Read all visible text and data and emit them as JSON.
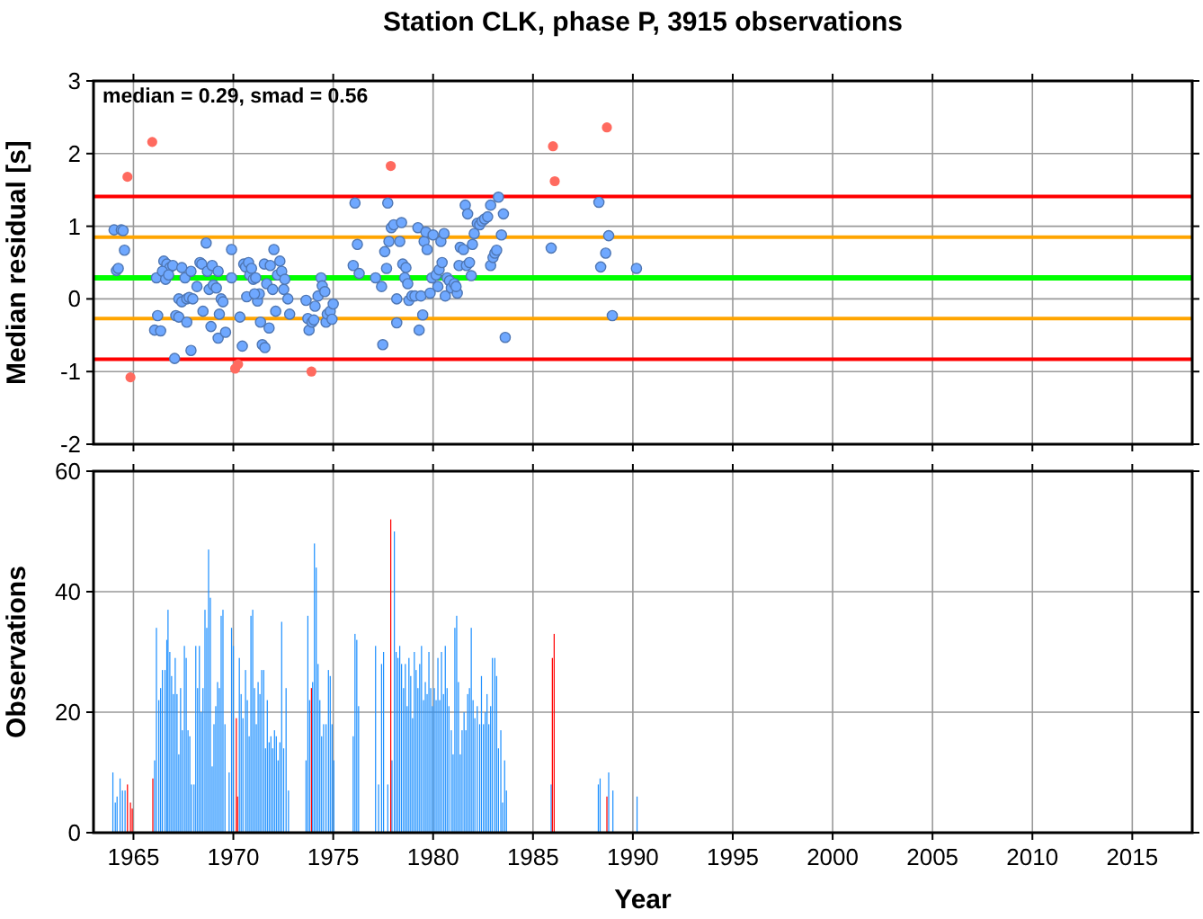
{
  "chart_data": [
    {
      "type": "scatter",
      "title": "Station CLK, phase P, 3915 observations",
      "ylabel": "Median residual [s]",
      "xlim": [
        1963,
        2018
      ],
      "xticks": [
        1965,
        1970,
        1975,
        1980,
        1985,
        1990,
        1995,
        2000,
        2005,
        2010,
        2015
      ],
      "ylim": [
        -2,
        3
      ],
      "yticks": [
        -2,
        -1,
        0,
        1,
        2,
        3
      ],
      "tick_labels": "y",
      "grid": true,
      "marker": "circle",
      "annotations": [
        "median = 0.29, smad = 0.56"
      ],
      "ref_lines": [
        {
          "axis": "y",
          "value": 1.41,
          "color": "#ff0000"
        },
        {
          "axis": "y",
          "value": 0.85,
          "color": "#ffa500"
        },
        {
          "axis": "y",
          "value": 0.29,
          "color": "#00ff00"
        },
        {
          "axis": "y",
          "value": -0.27,
          "color": "#ffa500"
        },
        {
          "axis": "y",
          "value": -0.83,
          "color": "#ff0000"
        }
      ],
      "series": [
        {
          "color": "#6fa8ff",
          "x": [
            1964.03,
            1964.39,
            1964.48,
            1964.55,
            1964.15,
            1964.24,
            1966.15,
            1966.21,
            1966.06,
            1966.36,
            1967.06,
            1966.52,
            1966.67,
            1966.82,
            1966.45,
            1966.61,
            1966.76,
            1966.97,
            1967.42,
            1967.58,
            1967.27,
            1967.42,
            1967.67,
            1967.79,
            1967.88,
            1967.97,
            1968.18,
            1968.33,
            1968.42,
            1968.64,
            1968.79,
            1968.7,
            1968.94,
            1969.0,
            1969.15,
            1969.24,
            1969.39,
            1969.48,
            1968.48,
            1968.88,
            1969.24,
            1969.61,
            1967.88,
            1967.12,
            1967.27,
            1967.67,
            1969.3,
            1969.91,
            1970.33,
            1970.45,
            1970.52,
            1970.61,
            1970.76,
            1970.82,
            1970.91,
            1971.0,
            1971.12,
            1971.21,
            1971.3,
            1971.36,
            1971.45,
            1971.58,
            1971.55,
            1971.67,
            1971.79,
            1971.85,
            1971.97,
            1972.03,
            1972.12,
            1972.21,
            1972.33,
            1972.42,
            1972.52,
            1972.58,
            1972.73,
            1972.82,
            1973.64,
            1973.73,
            1973.79,
            1973.94,
            1974.03,
            1974.09,
            1974.24,
            1974.39,
            1974.45,
            1974.58,
            1974.64,
            1974.7,
            1974.85,
            1974.94,
            1975.0,
            1970.67,
            1971.06,
            1969.91,
            1976.09,
            1976.21,
            1976.0,
            1976.3,
            1977.12,
            1977.42,
            1977.48,
            1977.58,
            1977.67,
            1977.73,
            1977.79,
            1977.91,
            1978.03,
            1978.18,
            1978.18,
            1978.33,
            1978.42,
            1978.48,
            1978.64,
            1978.58,
            1978.73,
            1978.79,
            1978.94,
            1979.09,
            1979.24,
            1979.3,
            1979.39,
            1979.48,
            1979.55,
            1979.64,
            1979.7,
            1979.85,
            1979.94,
            1980.0,
            1980.15,
            1980.24,
            1980.3,
            1980.39,
            1980.45,
            1980.55,
            1980.61,
            1980.7,
            1980.82,
            1980.91,
            1981.06,
            1981.21,
            1981.15,
            1981.3,
            1981.36,
            1981.52,
            1981.61,
            1981.73,
            1981.67,
            1981.82,
            1981.91,
            1981.97,
            1982.06,
            1982.21,
            1982.33,
            1982.45,
            1982.58,
            1982.73,
            1982.88,
            1982.88,
            1983.0,
            1983.09,
            1983.18,
            1983.27,
            1983.42,
            1983.52,
            1983.61,
            1985.91,
            1988.3,
            1988.79,
            1988.64,
            1988.39,
            1988.97,
            1990.18
          ],
          "values": [
            0.95,
            0.95,
            0.94,
            0.67,
            0.39,
            0.42,
            0.29,
            -0.23,
            -0.43,
            -0.44,
            -0.82,
            0.52,
            0.48,
            0.43,
            0.38,
            0.27,
            0.33,
            0.46,
            0.43,
            0.29,
            0.0,
            -0.04,
            0.0,
            0.02,
            0.38,
            0.0,
            0.17,
            0.5,
            0.48,
            0.77,
            0.13,
            0.38,
            0.46,
            0.19,
            0.15,
            0.38,
            0.0,
            -0.04,
            -0.17,
            -0.38,
            -0.54,
            -0.46,
            -0.71,
            -0.23,
            -0.25,
            -0.32,
            -0.21,
            0.68,
            -0.25,
            -0.65,
            0.48,
            0.44,
            0.5,
            0.33,
            0.42,
            0.27,
            0.29,
            -0.03,
            0.07,
            -0.32,
            -0.63,
            -0.67,
            0.48,
            0.21,
            -0.4,
            0.46,
            0.13,
            0.68,
            -0.17,
            0.33,
            0.52,
            0.38,
            0.13,
            0.27,
            0.0,
            -0.21,
            -0.02,
            -0.27,
            -0.43,
            -0.32,
            -0.29,
            -0.1,
            0.04,
            0.29,
            0.18,
            0.1,
            -0.32,
            -0.21,
            -0.17,
            -0.28,
            -0.07,
            0.03,
            0.07,
            0.29,
            1.32,
            0.75,
            0.46,
            0.35,
            0.29,
            0.17,
            -0.63,
            0.65,
            0.42,
            1.32,
            0.79,
            0.98,
            1.02,
            0.0,
            -0.33,
            0.79,
            1.05,
            0.48,
            0.43,
            0.29,
            0.21,
            -0.02,
            0.04,
            0.04,
            0.98,
            -0.43,
            0.04,
            -0.22,
            0.79,
            0.92,
            0.68,
            0.08,
            0.29,
            0.88,
            0.33,
            0.17,
            0.4,
            0.79,
            0.5,
            0.9,
            0.04,
            0.29,
            0.25,
            0.15,
            0.21,
            0.08,
            0.17,
            0.46,
            0.71,
            0.68,
            1.29,
            1.17,
            0.46,
            0.5,
            0.32,
            0.75,
            0.9,
            1.04,
            1.02,
            1.07,
            1.1,
            1.13,
            1.29,
            0.46,
            0.57,
            0.63,
            0.67,
            1.4,
            0.88,
            1.17,
            -0.53,
            0.7,
            1.33,
            0.87,
            0.63,
            0.44,
            -0.23,
            0.42
          ]
        },
        {
          "color": "#ff6a5f",
          "x": [
            1964.7,
            1965.94,
            1964.85,
            1970.09,
            1970.24,
            1973.91,
            1977.88,
            1986.0,
            1986.09,
            1988.7
          ],
          "values": [
            1.68,
            2.16,
            -1.08,
            -0.96,
            -0.9,
            -1.0,
            1.83,
            2.1,
            1.62,
            2.36
          ]
        }
      ]
    },
    {
      "type": "bar",
      "xlabel": "Year",
      "ylabel": "Observations",
      "xlim": [
        1963,
        2018
      ],
      "xticks": [
        1965,
        1970,
        1975,
        1980,
        1985,
        1990,
        1995,
        2000,
        2005,
        2010,
        2015
      ],
      "ylim": [
        0,
        60
      ],
      "yticks": [
        0,
        20,
        40,
        60
      ],
      "grid": true,
      "series": [
        {
          "color": "#1e90ff",
          "x": [
            1963.97,
            1964.09,
            1964.18,
            1964.33,
            1964.45,
            1964.58,
            1966.06,
            1966.15,
            1966.27,
            1966.36,
            1966.45,
            1966.58,
            1966.67,
            1966.73,
            1966.82,
            1966.91,
            1967.0,
            1967.09,
            1967.18,
            1967.27,
            1967.36,
            1967.45,
            1967.55,
            1967.64,
            1967.73,
            1967.82,
            1967.91,
            1968.03,
            1968.12,
            1968.21,
            1968.3,
            1968.39,
            1968.48,
            1968.58,
            1968.67,
            1968.76,
            1968.85,
            1968.94,
            1969.03,
            1969.12,
            1969.21,
            1969.3,
            1969.39,
            1969.48,
            1969.58,
            1969.79,
            1969.91,
            1970.0,
            1970.3,
            1970.39,
            1970.48,
            1970.61,
            1970.7,
            1970.79,
            1970.88,
            1970.97,
            1971.06,
            1971.15,
            1971.24,
            1971.33,
            1971.42,
            1971.52,
            1971.61,
            1971.7,
            1971.79,
            1971.88,
            1971.97,
            1972.06,
            1972.15,
            1972.24,
            1972.33,
            1972.42,
            1972.52,
            1972.64,
            1972.76,
            1973.64,
            1973.73,
            1973.82,
            1973.97,
            1974.06,
            1974.15,
            1974.24,
            1974.33,
            1974.42,
            1974.52,
            1974.64,
            1974.76,
            1974.85,
            1974.94,
            1975.03,
            1976.0,
            1976.09,
            1976.18,
            1976.27,
            1977.12,
            1977.27,
            1977.42,
            1977.52,
            1977.73,
            1977.94,
            1978.06,
            1978.15,
            1978.24,
            1978.33,
            1978.42,
            1978.52,
            1978.61,
            1978.7,
            1978.79,
            1978.88,
            1978.97,
            1979.06,
            1979.15,
            1979.24,
            1979.33,
            1979.42,
            1979.52,
            1979.61,
            1979.7,
            1979.79,
            1979.88,
            1979.97,
            1980.06,
            1980.15,
            1980.24,
            1980.33,
            1980.42,
            1980.52,
            1980.61,
            1980.7,
            1980.79,
            1980.91,
            1981.0,
            1981.09,
            1981.18,
            1981.27,
            1981.36,
            1981.45,
            1981.55,
            1981.64,
            1981.73,
            1981.82,
            1981.91,
            1982.0,
            1982.09,
            1982.21,
            1982.33,
            1982.42,
            1982.52,
            1982.61,
            1982.7,
            1982.79,
            1982.88,
            1982.97,
            1983.09,
            1983.18,
            1983.27,
            1983.39,
            1983.48,
            1983.58,
            1983.67,
            1985.91,
            1988.27,
            1988.36,
            1988.79,
            1989.0,
            1990.21
          ],
          "values": [
            10,
            5,
            6,
            9,
            7,
            7,
            12,
            34,
            22,
            24,
            27,
            27,
            32,
            37,
            30,
            26,
            23,
            29,
            23,
            13,
            24,
            17,
            31,
            29,
            17,
            16,
            8,
            8,
            31,
            24,
            31,
            20,
            24,
            37,
            34,
            47,
            39,
            11,
            18,
            21,
            25,
            24,
            36,
            37,
            18,
            10,
            34,
            31,
            29,
            23,
            19,
            27,
            22,
            16,
            36,
            37,
            24,
            18,
            25,
            23,
            27,
            27,
            14,
            22,
            15,
            16,
            14,
            17,
            16,
            12,
            15,
            35,
            14,
            24,
            7,
            12,
            36,
            22,
            25,
            48,
            44,
            28,
            22,
            16,
            18,
            18,
            27,
            26,
            18,
            12,
            16,
            33,
            32,
            21,
            31,
            8,
            28,
            30,
            8,
            12,
            50,
            30,
            29,
            31,
            28,
            24,
            28,
            21,
            29,
            26,
            19,
            30,
            27,
            24,
            28,
            31,
            22,
            25,
            23,
            30,
            24,
            21,
            24,
            22,
            29,
            22,
            30,
            23,
            31,
            24,
            21,
            17,
            13,
            34,
            36,
            25,
            13,
            17,
            20,
            17,
            23,
            24,
            34,
            22,
            19,
            21,
            18,
            26,
            18,
            20,
            23,
            18,
            21,
            29,
            29,
            26,
            14,
            17,
            5,
            12,
            7,
            8,
            8,
            9,
            10,
            7,
            6
          ]
        },
        {
          "color": "#ff0000",
          "x": [
            1964.7,
            1964.85,
            1964.94,
            1965.97,
            1970.15,
            1970.21,
            1973.91,
            1977.88,
            1985.97,
            1986.06,
            1988.7
          ],
          "values": [
            8,
            5,
            4,
            9,
            19,
            6,
            24,
            52,
            29,
            33,
            6
          ]
        }
      ]
    }
  ]
}
